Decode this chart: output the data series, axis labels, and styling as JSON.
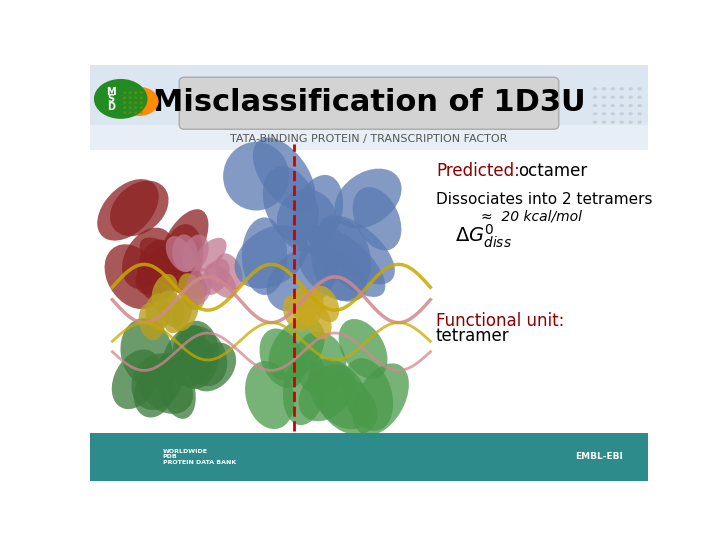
{
  "title": "Misclassification of 1D3U",
  "subtitle": "TATA-BINDING PROTEIN / TRANSCRIPTION FACTOR",
  "predicted_label": "Predicted:",
  "predicted_value": "octamer",
  "dissociates_text": "Dissociates into 2 tetramers",
  "approx_text": "≈  20 kcal/mol",
  "functional_label": "Functional unit:",
  "functional_value": "tetramer",
  "title_box_color": "#d3d3d3",
  "title_box_edge": "#aaaaaa",
  "title_text_color": "#000000",
  "subtitle_color": "#555555",
  "predicted_label_color": "#8B0000",
  "predicted_value_color": "#000000",
  "dissociates_color": "#000000",
  "approx_color": "#000000",
  "functional_label_color": "#8B0000",
  "functional_value_color": "#000000",
  "dashed_line_color": "#cc0000",
  "bg_color": "#ffffff",
  "footer_bar_color": "#2e8b8b",
  "footer_text_color": "#ffffff",
  "title_fontsize": 22,
  "subtitle_fontsize": 8,
  "annotation_fontsize": 12
}
